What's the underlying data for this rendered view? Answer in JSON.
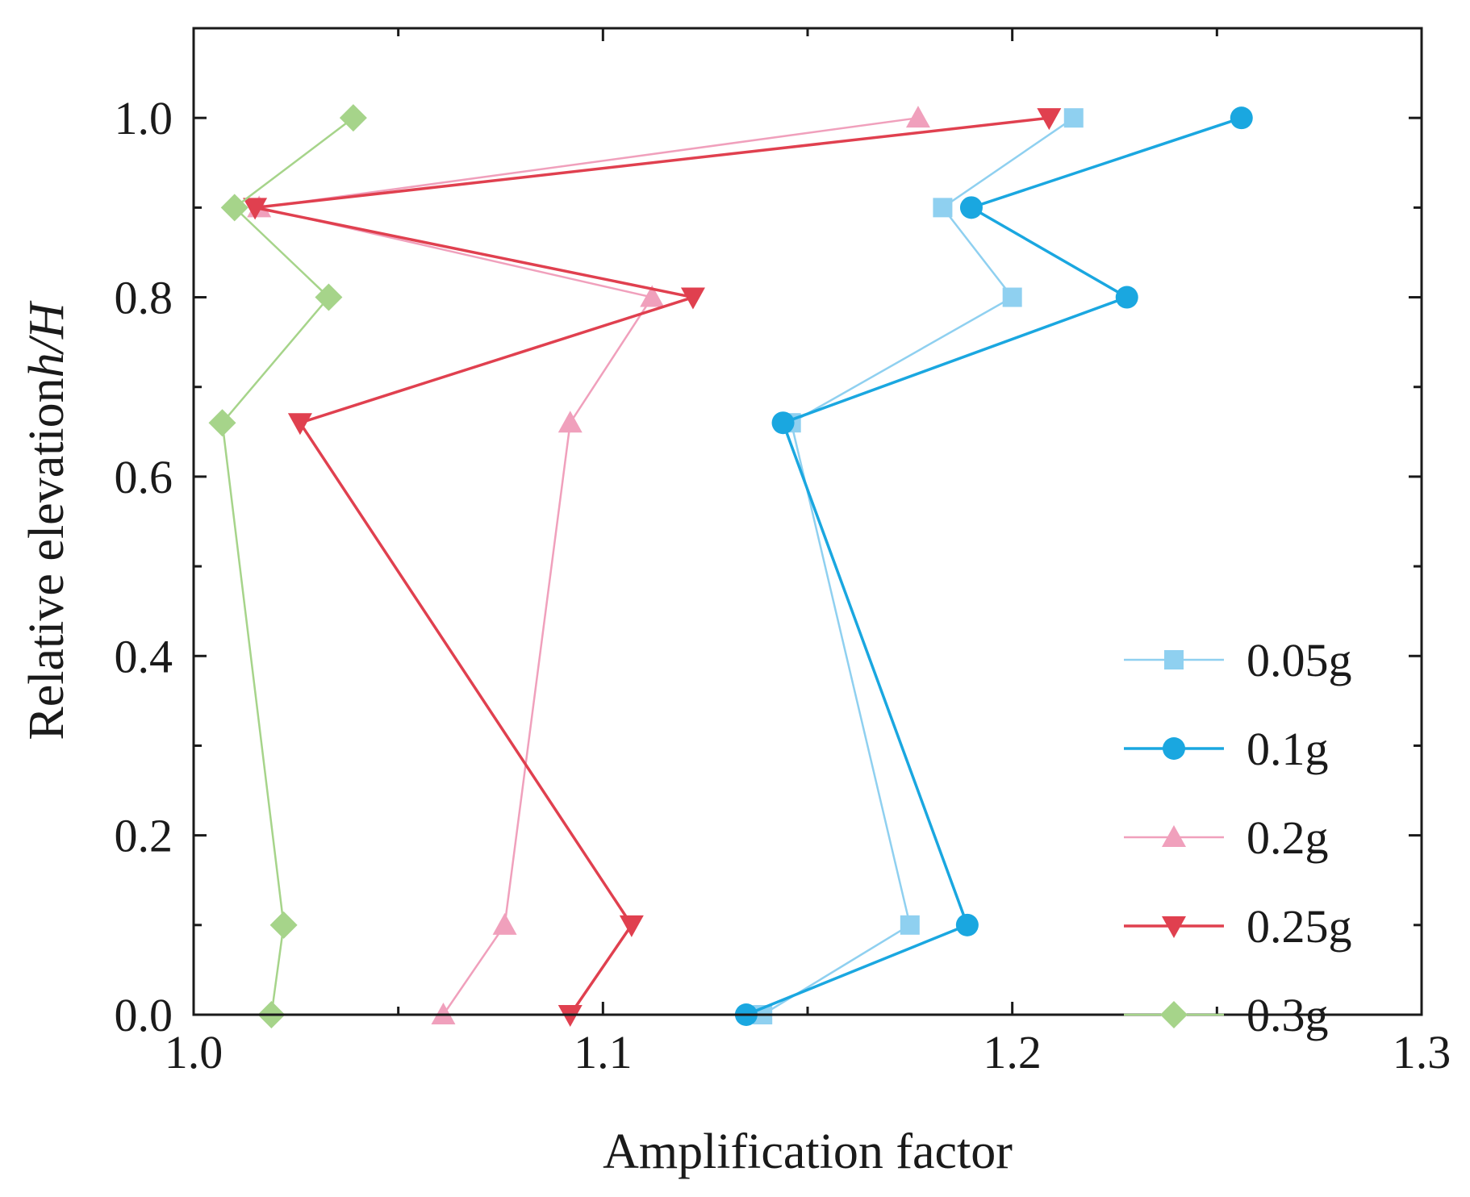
{
  "chart_data": {
    "type": "line",
    "title": "",
    "xlabel": "Amplification factor",
    "ylabel_main": "Relative elevation",
    "ylabel_italic": "h/H",
    "xlim": [
      1.0,
      1.3
    ],
    "ylim": [
      0.0,
      1.1
    ],
    "xticks": [
      1.0,
      1.1,
      1.2,
      1.3
    ],
    "xtick_labels": [
      "1.0",
      "1.1",
      "1.2",
      "1.3"
    ],
    "yticks": [
      0.0,
      0.2,
      0.4,
      0.6,
      0.8,
      1.0
    ],
    "ytick_labels": [
      "0.0",
      "0.2",
      "0.4",
      "0.6",
      "0.8",
      "1.0"
    ],
    "grid": false,
    "legend_position": "bottom-right",
    "y": [
      0.0,
      0.1,
      0.66,
      0.8,
      0.9,
      1.0
    ],
    "series": [
      {
        "name": "0.05g",
        "marker": "square",
        "color": "#8fd0f0",
        "x": [
          1.139,
          1.175,
          1.146,
          1.2,
          1.183,
          1.215
        ]
      },
      {
        "name": "0.1g",
        "marker": "circle",
        "color": "#1aa7e0",
        "x": [
          1.135,
          1.189,
          1.144,
          1.228,
          1.19,
          1.256
        ]
      },
      {
        "name": "0.2g",
        "marker": "triangle-up",
        "color": "#f0a0bc",
        "x": [
          1.061,
          1.076,
          1.092,
          1.112,
          1.016,
          1.177
        ]
      },
      {
        "name": "0.25g",
        "marker": "triangle-down",
        "color": "#e0404f",
        "x": [
          1.092,
          1.107,
          1.026,
          1.122,
          1.015,
          1.209
        ]
      },
      {
        "name": "0.3g",
        "marker": "diamond",
        "color": "#a6d48a",
        "x": [
          1.019,
          1.022,
          1.007,
          1.033,
          1.01,
          1.039
        ]
      }
    ]
  }
}
